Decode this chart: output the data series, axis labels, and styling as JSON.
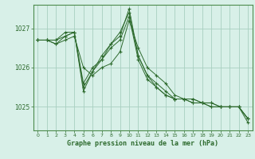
{
  "title": "Graphe pression niveau de la mer (hPa)",
  "background_color": "#d8f0e8",
  "grid_color": "#a8cfc0",
  "line_color": "#2d6a2d",
  "xlim": [
    -0.5,
    23.5
  ],
  "ylim": [
    1024.4,
    1027.6
  ],
  "yticks": [
    1025,
    1026,
    1027
  ],
  "ytick_labels": [
    "1025",
    "1026",
    "1027"
  ],
  "xticks": [
    0,
    1,
    2,
    3,
    4,
    5,
    6,
    7,
    8,
    9,
    10,
    11,
    12,
    13,
    14,
    15,
    16,
    17,
    18,
    19,
    20,
    21,
    22,
    23
  ],
  "series": [
    [
      1026.7,
      1026.7,
      1026.6,
      1026.7,
      1026.8,
      1026.0,
      1025.8,
      1026.0,
      1026.1,
      1026.4,
      1027.2,
      1026.5,
      1026.0,
      1025.8,
      1025.6,
      1025.3,
      1025.2,
      1025.2,
      1025.1,
      1025.1,
      1025.0,
      1025.0,
      1025.0,
      1024.7
    ],
    [
      1026.7,
      1026.7,
      1026.6,
      1026.8,
      1026.9,
      1025.6,
      1026.0,
      1026.2,
      1026.5,
      1026.7,
      1027.3,
      1026.2,
      1025.7,
      1025.5,
      1025.3,
      1025.2,
      1025.2,
      1025.1,
      1025.1,
      1025.1,
      1025.0,
      1025.0,
      1025.0,
      1024.7
    ],
    [
      1026.7,
      1026.7,
      1026.7,
      1026.8,
      1026.9,
      1025.5,
      1025.9,
      1026.3,
      1026.6,
      1026.9,
      1027.4,
      1026.3,
      1025.8,
      1025.6,
      1025.4,
      1025.2,
      1025.2,
      1025.2,
      1025.1,
      1025.0,
      1025.0,
      1025.0,
      1025.0,
      1024.7
    ],
    [
      1026.7,
      1026.7,
      1026.7,
      1026.9,
      1026.9,
      1025.4,
      1025.9,
      1026.2,
      1026.6,
      1026.8,
      1027.5,
      1026.3,
      1025.8,
      1025.5,
      1025.3,
      1025.2,
      1025.2,
      1025.1,
      1025.1,
      1025.0,
      1025.0,
      1025.0,
      1025.0,
      1024.6
    ]
  ]
}
